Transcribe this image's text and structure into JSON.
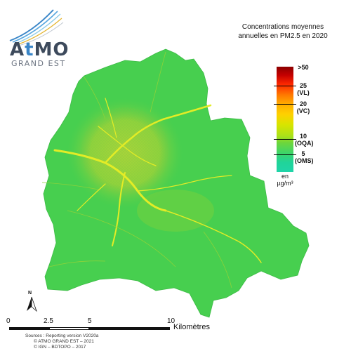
{
  "logo": {
    "brand_a": "A",
    "brand_t": "t",
    "brand_mo": "MO",
    "subtitle": "GRAND EST"
  },
  "title": {
    "line1": "Concentrations moyennes",
    "line2": "annuelles en PM2.5 en 2020"
  },
  "legend": {
    "labels": [
      {
        "value": ">50",
        "note": ""
      },
      {
        "value": "25",
        "note": "(VL)"
      },
      {
        "value": "20",
        "note": "(VC)"
      },
      {
        "value": "10",
        "note": "(OQA)"
      },
      {
        "value": "5",
        "note": "(OMS)"
      }
    ],
    "unit_line1": "en",
    "unit_line2": "µg/m³",
    "colors": {
      "top": "#8b0000",
      "mid_high": "#ff7a00",
      "mid": "#ffd000",
      "mid_low": "#a9e11a",
      "low": "#20d4a8"
    }
  },
  "map": {
    "base_color": "#46d04e",
    "urban_color": "#8fd43c",
    "road_color": "#e4ec2a"
  },
  "north": {
    "label": "N",
    "icon": "north-arrow-icon"
  },
  "scale": {
    "ticks": [
      "0",
      "2.5",
      "5",
      "10"
    ],
    "unit": "Kilomètres"
  },
  "sources": {
    "line1": "Sources : Reporting version V2020a",
    "line2": "© ATMO GRAND EST – 2021",
    "line3": "© IGN – BDTOPO – 2017"
  }
}
